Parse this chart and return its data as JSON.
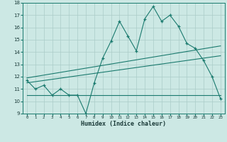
{
  "xlabel": "Humidex (Indice chaleur)",
  "xlim": [
    -0.5,
    23.5
  ],
  "ylim": [
    9,
    18
  ],
  "yticks": [
    9,
    10,
    11,
    12,
    13,
    14,
    15,
    16,
    17,
    18
  ],
  "xticks": [
    0,
    1,
    2,
    3,
    4,
    5,
    6,
    7,
    8,
    9,
    10,
    11,
    12,
    13,
    14,
    15,
    16,
    17,
    18,
    19,
    20,
    21,
    22,
    23
  ],
  "bg_color": "#cce8e4",
  "line_color": "#1a7a6e",
  "grid_color": "#aaccc8",
  "line1_x": [
    0,
    1,
    2,
    3,
    4,
    5,
    6,
    7,
    8,
    9,
    10,
    11,
    12,
    13,
    14,
    15,
    16,
    17,
    18,
    19,
    20,
    21,
    22,
    23
  ],
  "line1_y": [
    11.7,
    11.0,
    11.3,
    10.5,
    11.0,
    10.5,
    10.5,
    9.0,
    11.5,
    13.5,
    14.9,
    16.5,
    15.3,
    14.1,
    16.7,
    17.7,
    16.5,
    17.0,
    16.1,
    14.7,
    14.3,
    13.3,
    12.0,
    10.2
  ],
  "line2_x": [
    0,
    23
  ],
  "line2_y": [
    10.5,
    10.5
  ],
  "line3_x": [
    0,
    23
  ],
  "line3_y": [
    11.5,
    13.7
  ],
  "line4_x": [
    0,
    23
  ],
  "line4_y": [
    11.9,
    14.5
  ]
}
